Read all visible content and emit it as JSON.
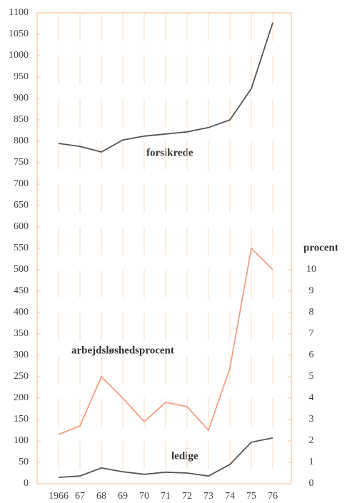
{
  "chart_data": {
    "type": "line",
    "categories": [
      "1966",
      "67",
      "68",
      "69",
      "70",
      "71",
      "72",
      "73",
      "74",
      "75",
      "76"
    ],
    "series": [
      {
        "name": "forsikrede",
        "color": "#555555",
        "values": [
          795,
          788,
          775,
          803,
          812,
          817,
          822,
          832,
          850,
          923,
          1077
        ]
      },
      {
        "name": "arbejdsløshedsprocent",
        "color": "#f2a080",
        "axis": "y2",
        "values": [
          2.3,
          2.7,
          5.0,
          4.0,
          2.9,
          3.8,
          3.6,
          2.5,
          5.4,
          11.0,
          10.0
        ]
      },
      {
        "name": "ledige",
        "color": "#555555",
        "values": [
          15,
          18,
          37,
          28,
          22,
          27,
          25,
          18,
          45,
          97,
          107
        ]
      }
    ],
    "ylim": [
      0,
      1100
    ],
    "yticks": [
      0,
      50,
      100,
      150,
      200,
      250,
      300,
      350,
      400,
      450,
      500,
      550,
      600,
      650,
      700,
      750,
      800,
      850,
      900,
      950,
      1000,
      1050,
      1100
    ],
    "y2label": "procent",
    "y2lim": [
      0,
      22
    ],
    "y2ticks": [
      0,
      1,
      2,
      3,
      4,
      5,
      6,
      7,
      8,
      9,
      10
    ],
    "grid": true
  }
}
